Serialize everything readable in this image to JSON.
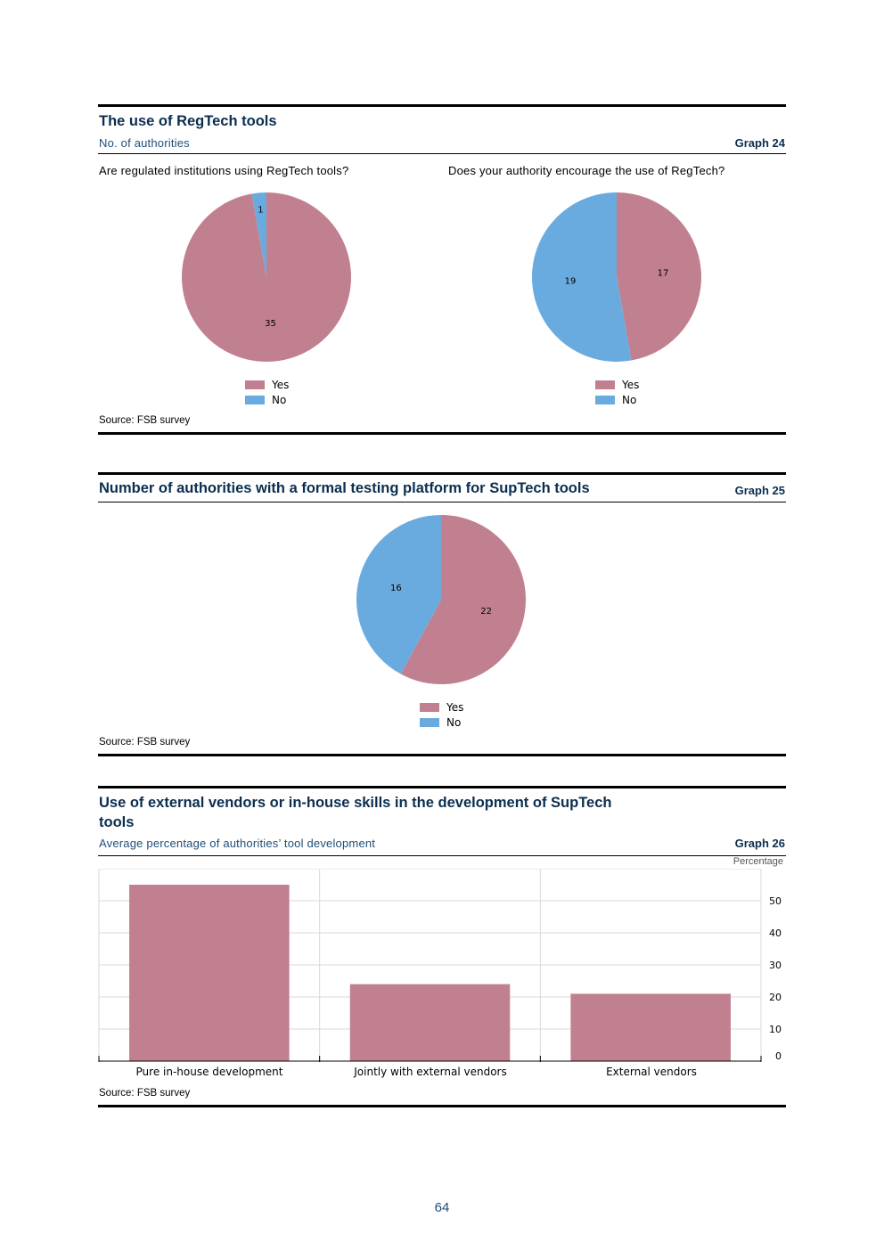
{
  "colors": {
    "yes": "#c08090",
    "no": "#6aabdf",
    "title": "#0b2e4f",
    "grid": "#d9d9d9"
  },
  "graph24": {
    "title": "The use of RegTech tools",
    "subtitle": "No. of authorities",
    "graph_label": "Graph 24",
    "left_question": "Are regulated institutions using RegTech tools?",
    "right_question": "Does your authority encourage the use of RegTech?",
    "source": "Source: FSB survey"
  },
  "graph25": {
    "title": "Number of authorities with a formal testing platform for SupTech tools",
    "graph_label": "Graph 25",
    "source": "Source: FSB survey"
  },
  "graph26": {
    "title_line1": "Use of external vendors or in-house skills in the development of SupTech",
    "title_line2": "tools",
    "subtitle": "Average percentage of authorities’ tool development",
    "graph_label": "Graph 26",
    "unit": "Percentage",
    "source": "Source: FSB survey"
  },
  "legend": {
    "yes": "Yes",
    "no": "No"
  },
  "chart_data": [
    {
      "type": "pie",
      "title": "Are regulated institutions using RegTech tools?",
      "labels": [
        "Yes",
        "No"
      ],
      "values": [
        35,
        1
      ]
    },
    {
      "type": "pie",
      "title": "Does your authority encourage the use of RegTech?",
      "labels": [
        "Yes",
        "No"
      ],
      "values": [
        17,
        19
      ]
    },
    {
      "type": "pie",
      "title": "Number of authorities with a formal testing platform for SupTech tools",
      "labels": [
        "Yes",
        "No"
      ],
      "values": [
        22,
        16
      ]
    },
    {
      "type": "bar",
      "title": "Use of external vendors or in-house skills in the development of SupTech tools",
      "categories": [
        "Pure in-house development",
        "Jointly with external vendors",
        "External vendors"
      ],
      "values": [
        55,
        24,
        21
      ],
      "ylabel": "Percentage",
      "ylim": [
        0,
        60
      ],
      "yticks": [
        0,
        10,
        20,
        30,
        40,
        50
      ]
    }
  ],
  "page_number": "64"
}
